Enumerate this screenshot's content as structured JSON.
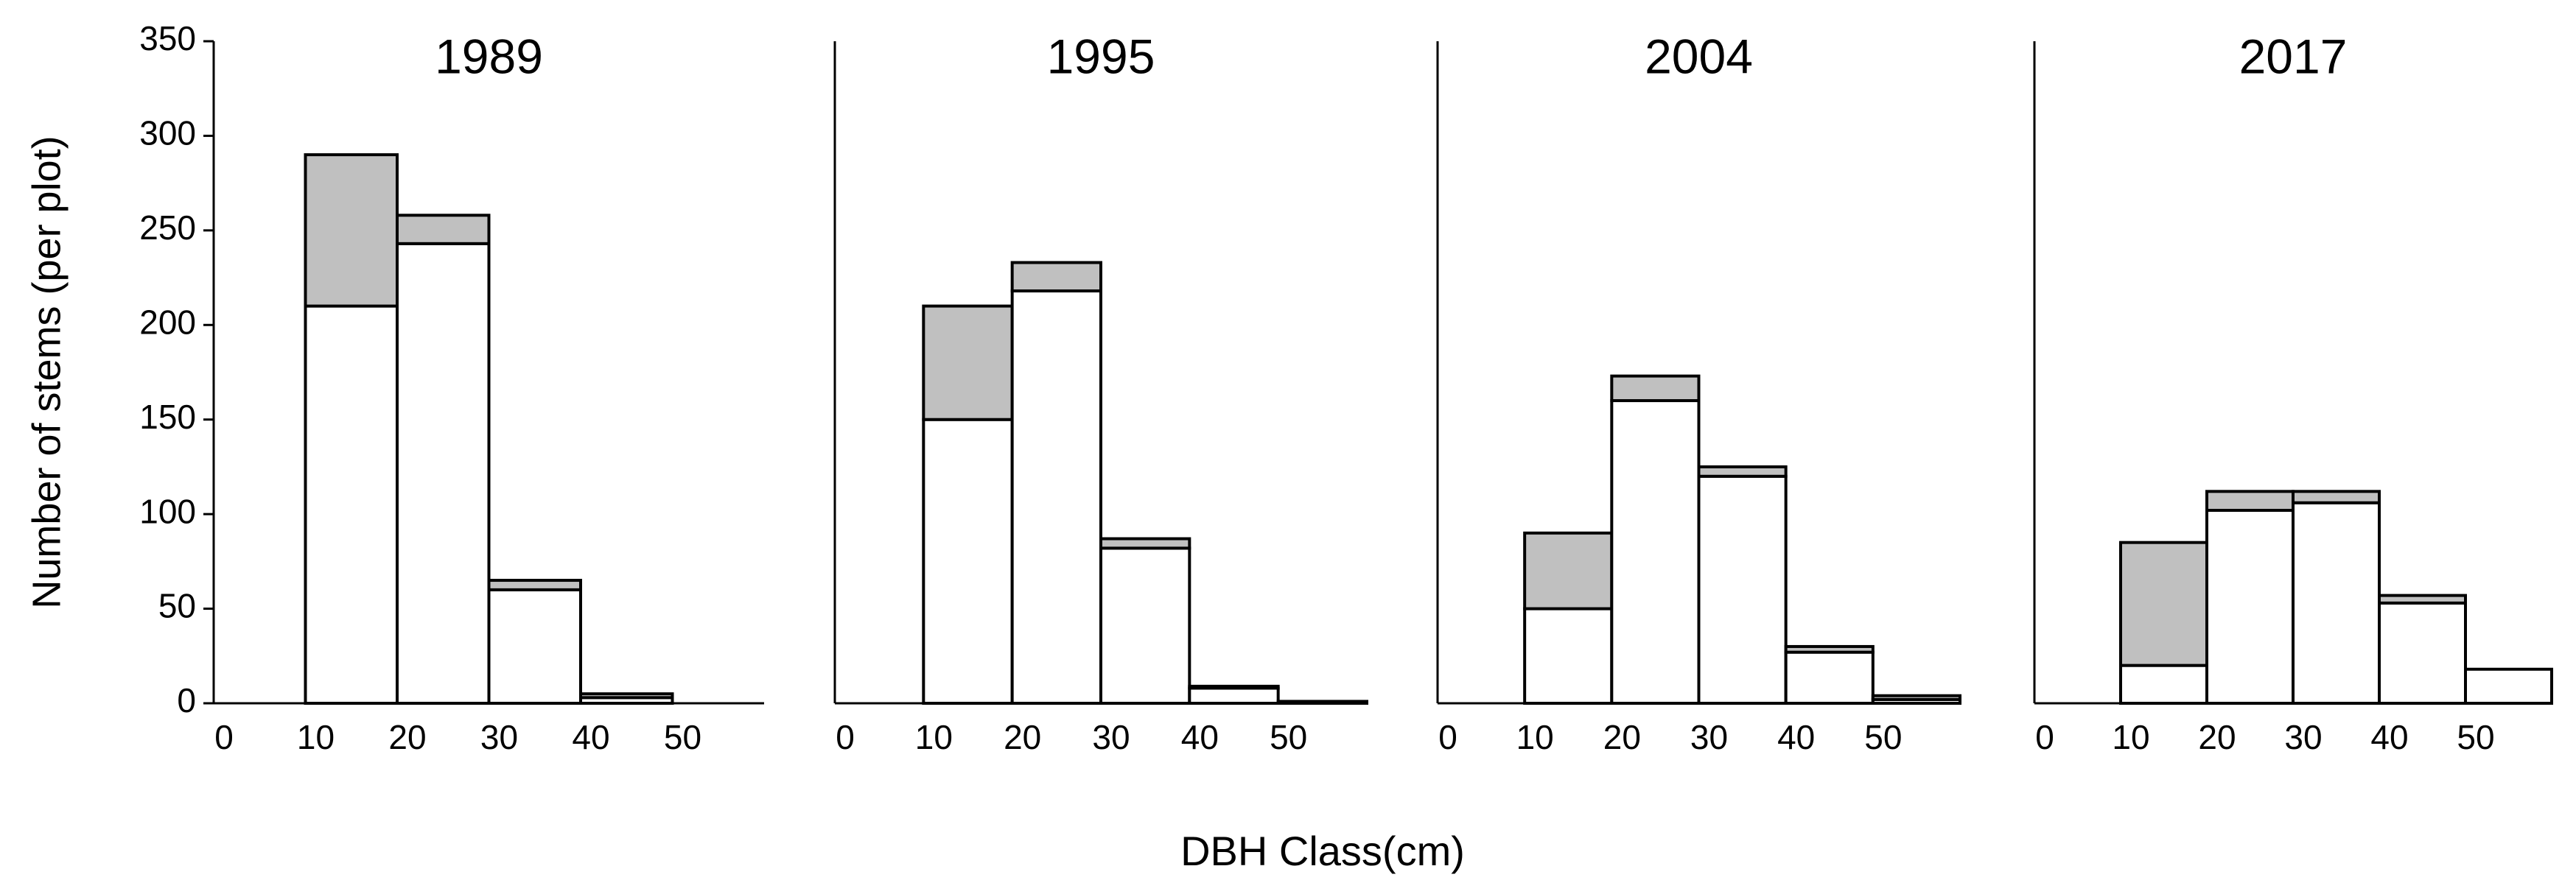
{
  "chart_data": [
    {
      "type": "histogram",
      "title": "1989",
      "y_label": "Number of stems (per plot)",
      "bins": [
        0,
        10,
        20,
        30,
        40,
        50,
        60
      ],
      "series": [
        {
          "color": "#ffffff",
          "values": [
            0,
            210,
            243,
            60,
            3,
            0
          ]
        },
        {
          "color": "#c0c0c0",
          "values": [
            0,
            80,
            15,
            5,
            2,
            0
          ]
        }
      ],
      "xlim": [
        0,
        60
      ],
      "xticks": [
        0,
        10,
        20,
        30,
        40,
        50
      ],
      "ylim": [
        0,
        350
      ],
      "yticks": [
        0,
        50,
        100,
        150,
        200,
        250,
        300,
        350
      ]
    },
    {
      "type": "histogram",
      "title": "1995",
      "bins": [
        0,
        10,
        20,
        30,
        40,
        50,
        60
      ],
      "series": [
        {
          "color": "#ffffff",
          "values": [
            0,
            150,
            218,
            82,
            8,
            1
          ]
        },
        {
          "color": "#c0c0c0",
          "values": [
            0,
            60,
            15,
            5,
            1,
            0
          ]
        }
      ],
      "xlim": [
        0,
        60
      ],
      "xticks": [
        0,
        10,
        20,
        30,
        40,
        50
      ],
      "ylim": [
        0,
        350
      ]
    },
    {
      "type": "histogram",
      "title": "2004",
      "bins": [
        0,
        10,
        20,
        30,
        40,
        50,
        60
      ],
      "series": [
        {
          "color": "#ffffff",
          "values": [
            0,
            50,
            160,
            120,
            27,
            2
          ]
        },
        {
          "color": "#c0c0c0",
          "values": [
            0,
            40,
            13,
            5,
            3,
            2
          ]
        }
      ],
      "xlim": [
        0,
        60
      ],
      "xticks": [
        0,
        10,
        20,
        30,
        40,
        50
      ],
      "ylim": [
        0,
        350
      ]
    },
    {
      "type": "histogram",
      "title": "2017",
      "bins": [
        0,
        10,
        20,
        30,
        40,
        50,
        60
      ],
      "series": [
        {
          "color": "#ffffff",
          "values": [
            0,
            20,
            102,
            106,
            53,
            18
          ]
        },
        {
          "color": "#c0c0c0",
          "values": [
            0,
            65,
            10,
            6,
            4,
            0
          ]
        }
      ],
      "xlim": [
        0,
        60
      ],
      "xticks": [
        0,
        10,
        20,
        30,
        40,
        50
      ],
      "ylim": [
        0,
        350
      ]
    }
  ],
  "x_label": "DBH Class(cm)"
}
